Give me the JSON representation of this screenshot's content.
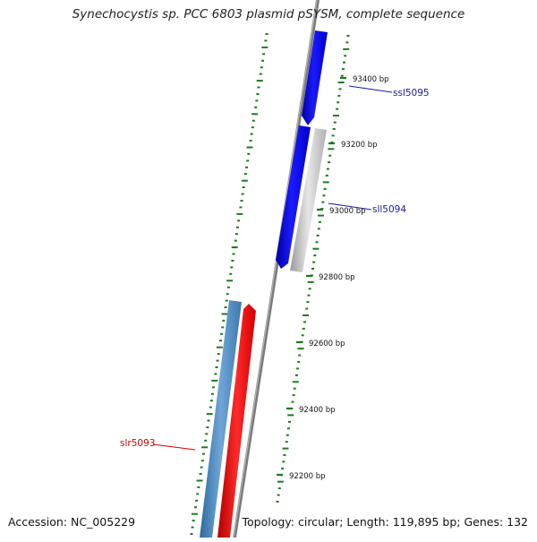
{
  "title": "Synechocystis sp. PCC 6803 plasmid pSYSM, complete sequence",
  "footer": {
    "accession": "Accession: NC_005229",
    "summary": "Topology: circular; Length: 119,895 bp; Genes: 132"
  },
  "ticks": [
    {
      "label": "93400 bp"
    },
    {
      "label": "93200 bp"
    },
    {
      "label": "93000 bp"
    },
    {
      "label": "92800 bp"
    },
    {
      "label": "92600 bp"
    },
    {
      "label": "92400 bp"
    },
    {
      "label": "92200 bp"
    }
  ],
  "genes": [
    {
      "label": "ssl5095",
      "color": "#1a1aa0",
      "fill": "#0000ff"
    },
    {
      "label": "sll5094",
      "color": "#1a1aa0",
      "fill": "#0000ff"
    },
    {
      "label": "slr5093",
      "color": "#d40000",
      "fill": "#ff0000"
    }
  ],
  "colors": {
    "backbone": "#8a8a8a",
    "gc_skew": "#1e7a1e",
    "gray_feature": "#c8c8c8",
    "steel_feature": "#4a86c0"
  }
}
